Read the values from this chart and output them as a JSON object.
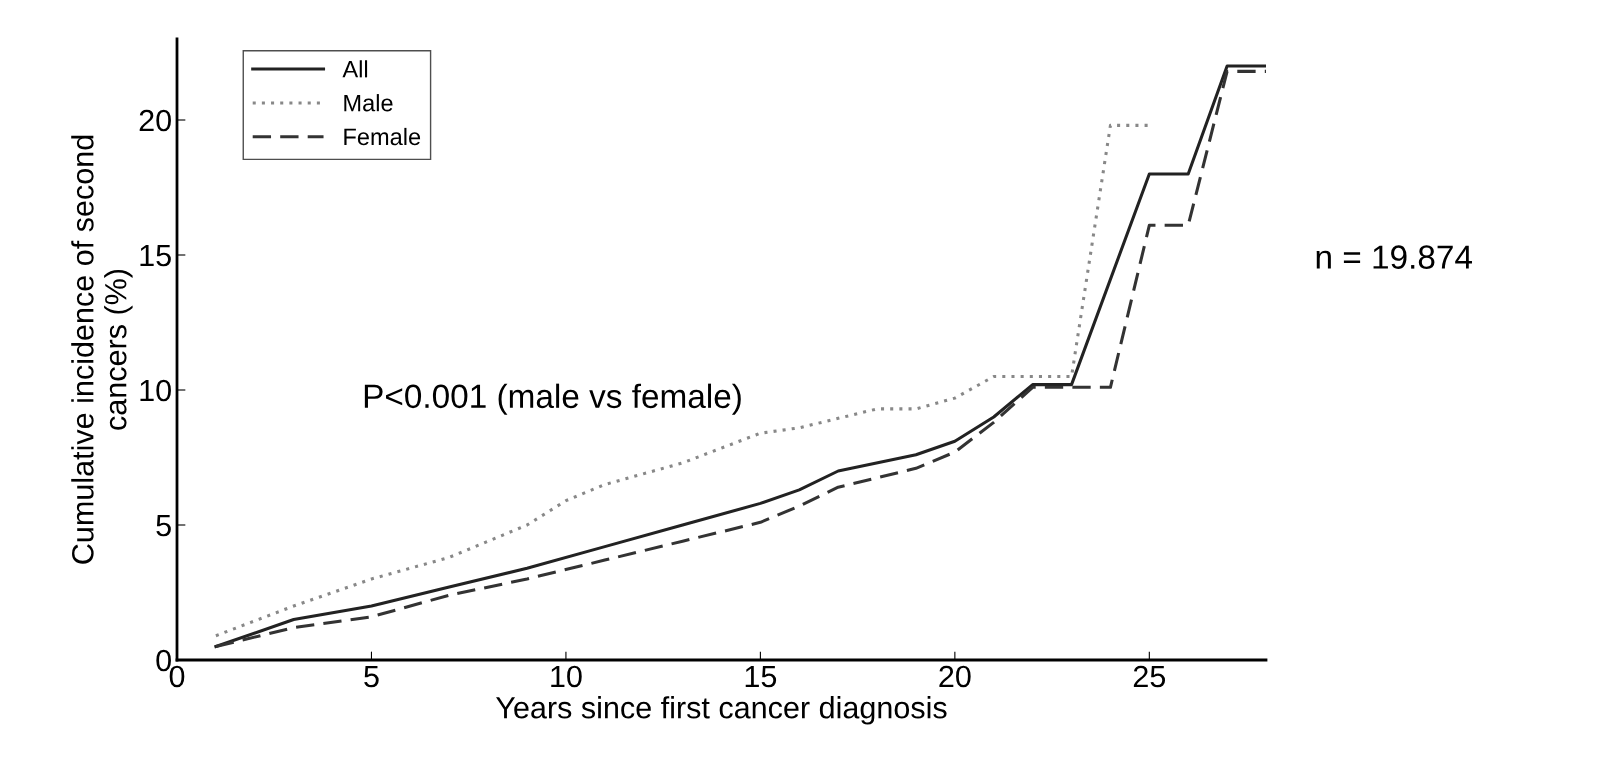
{
  "chart_data": {
    "type": "line",
    "xlabel": "Years since first cancer diagnosis",
    "ylabel": "Cumulative incidence of second\ncancers (%)",
    "xlim": [
      0,
      28
    ],
    "ylim": [
      0,
      23
    ],
    "xticks": [
      0,
      5,
      10,
      15,
      20,
      25
    ],
    "yticks": [
      0,
      5,
      10,
      15,
      20
    ],
    "grid": false,
    "legend": "top left",
    "annotations": [
      "P<0.001 (male vs female)",
      "n = 19.874"
    ],
    "series": [
      {
        "name": "All",
        "color": "#222222",
        "line_style": "solid",
        "x": [
          1,
          3,
          5,
          7,
          9,
          11,
          13,
          15,
          16,
          17,
          19,
          20,
          21,
          22,
          23,
          25,
          26,
          27,
          28
        ],
        "values": [
          0.5,
          1.5,
          2,
          2.7,
          3.4,
          4.2,
          5,
          5.8,
          6.3,
          7,
          7.6,
          8.1,
          9,
          10.2,
          10.2,
          18,
          18,
          22,
          22
        ]
      },
      {
        "name": "Male",
        "color": "#888888",
        "line_style": "dotted",
        "x": [
          1,
          3,
          5,
          7,
          9,
          10,
          11,
          13,
          15,
          16,
          18,
          19,
          20,
          21,
          23,
          24,
          25
        ],
        "values": [
          0.9,
          2,
          3,
          3.8,
          5,
          5.9,
          6.5,
          7.3,
          8.4,
          8.6,
          9.3,
          9.3,
          9.7,
          10.5,
          10.5,
          19.8,
          19.8
        ]
      },
      {
        "name": "Female",
        "color": "#333333",
        "line_style": "dashed",
        "x": [
          1,
          3,
          5,
          7,
          9,
          11,
          13,
          15,
          16,
          17,
          19,
          20,
          21,
          22,
          24,
          25,
          26,
          27,
          28
        ],
        "values": [
          0.5,
          1.2,
          1.6,
          2.4,
          3,
          3.7,
          4.4,
          5.1,
          5.7,
          6.4,
          7.1,
          7.7,
          8.8,
          10.1,
          10.1,
          16.1,
          16.1,
          21.8,
          21.8
        ]
      }
    ]
  }
}
